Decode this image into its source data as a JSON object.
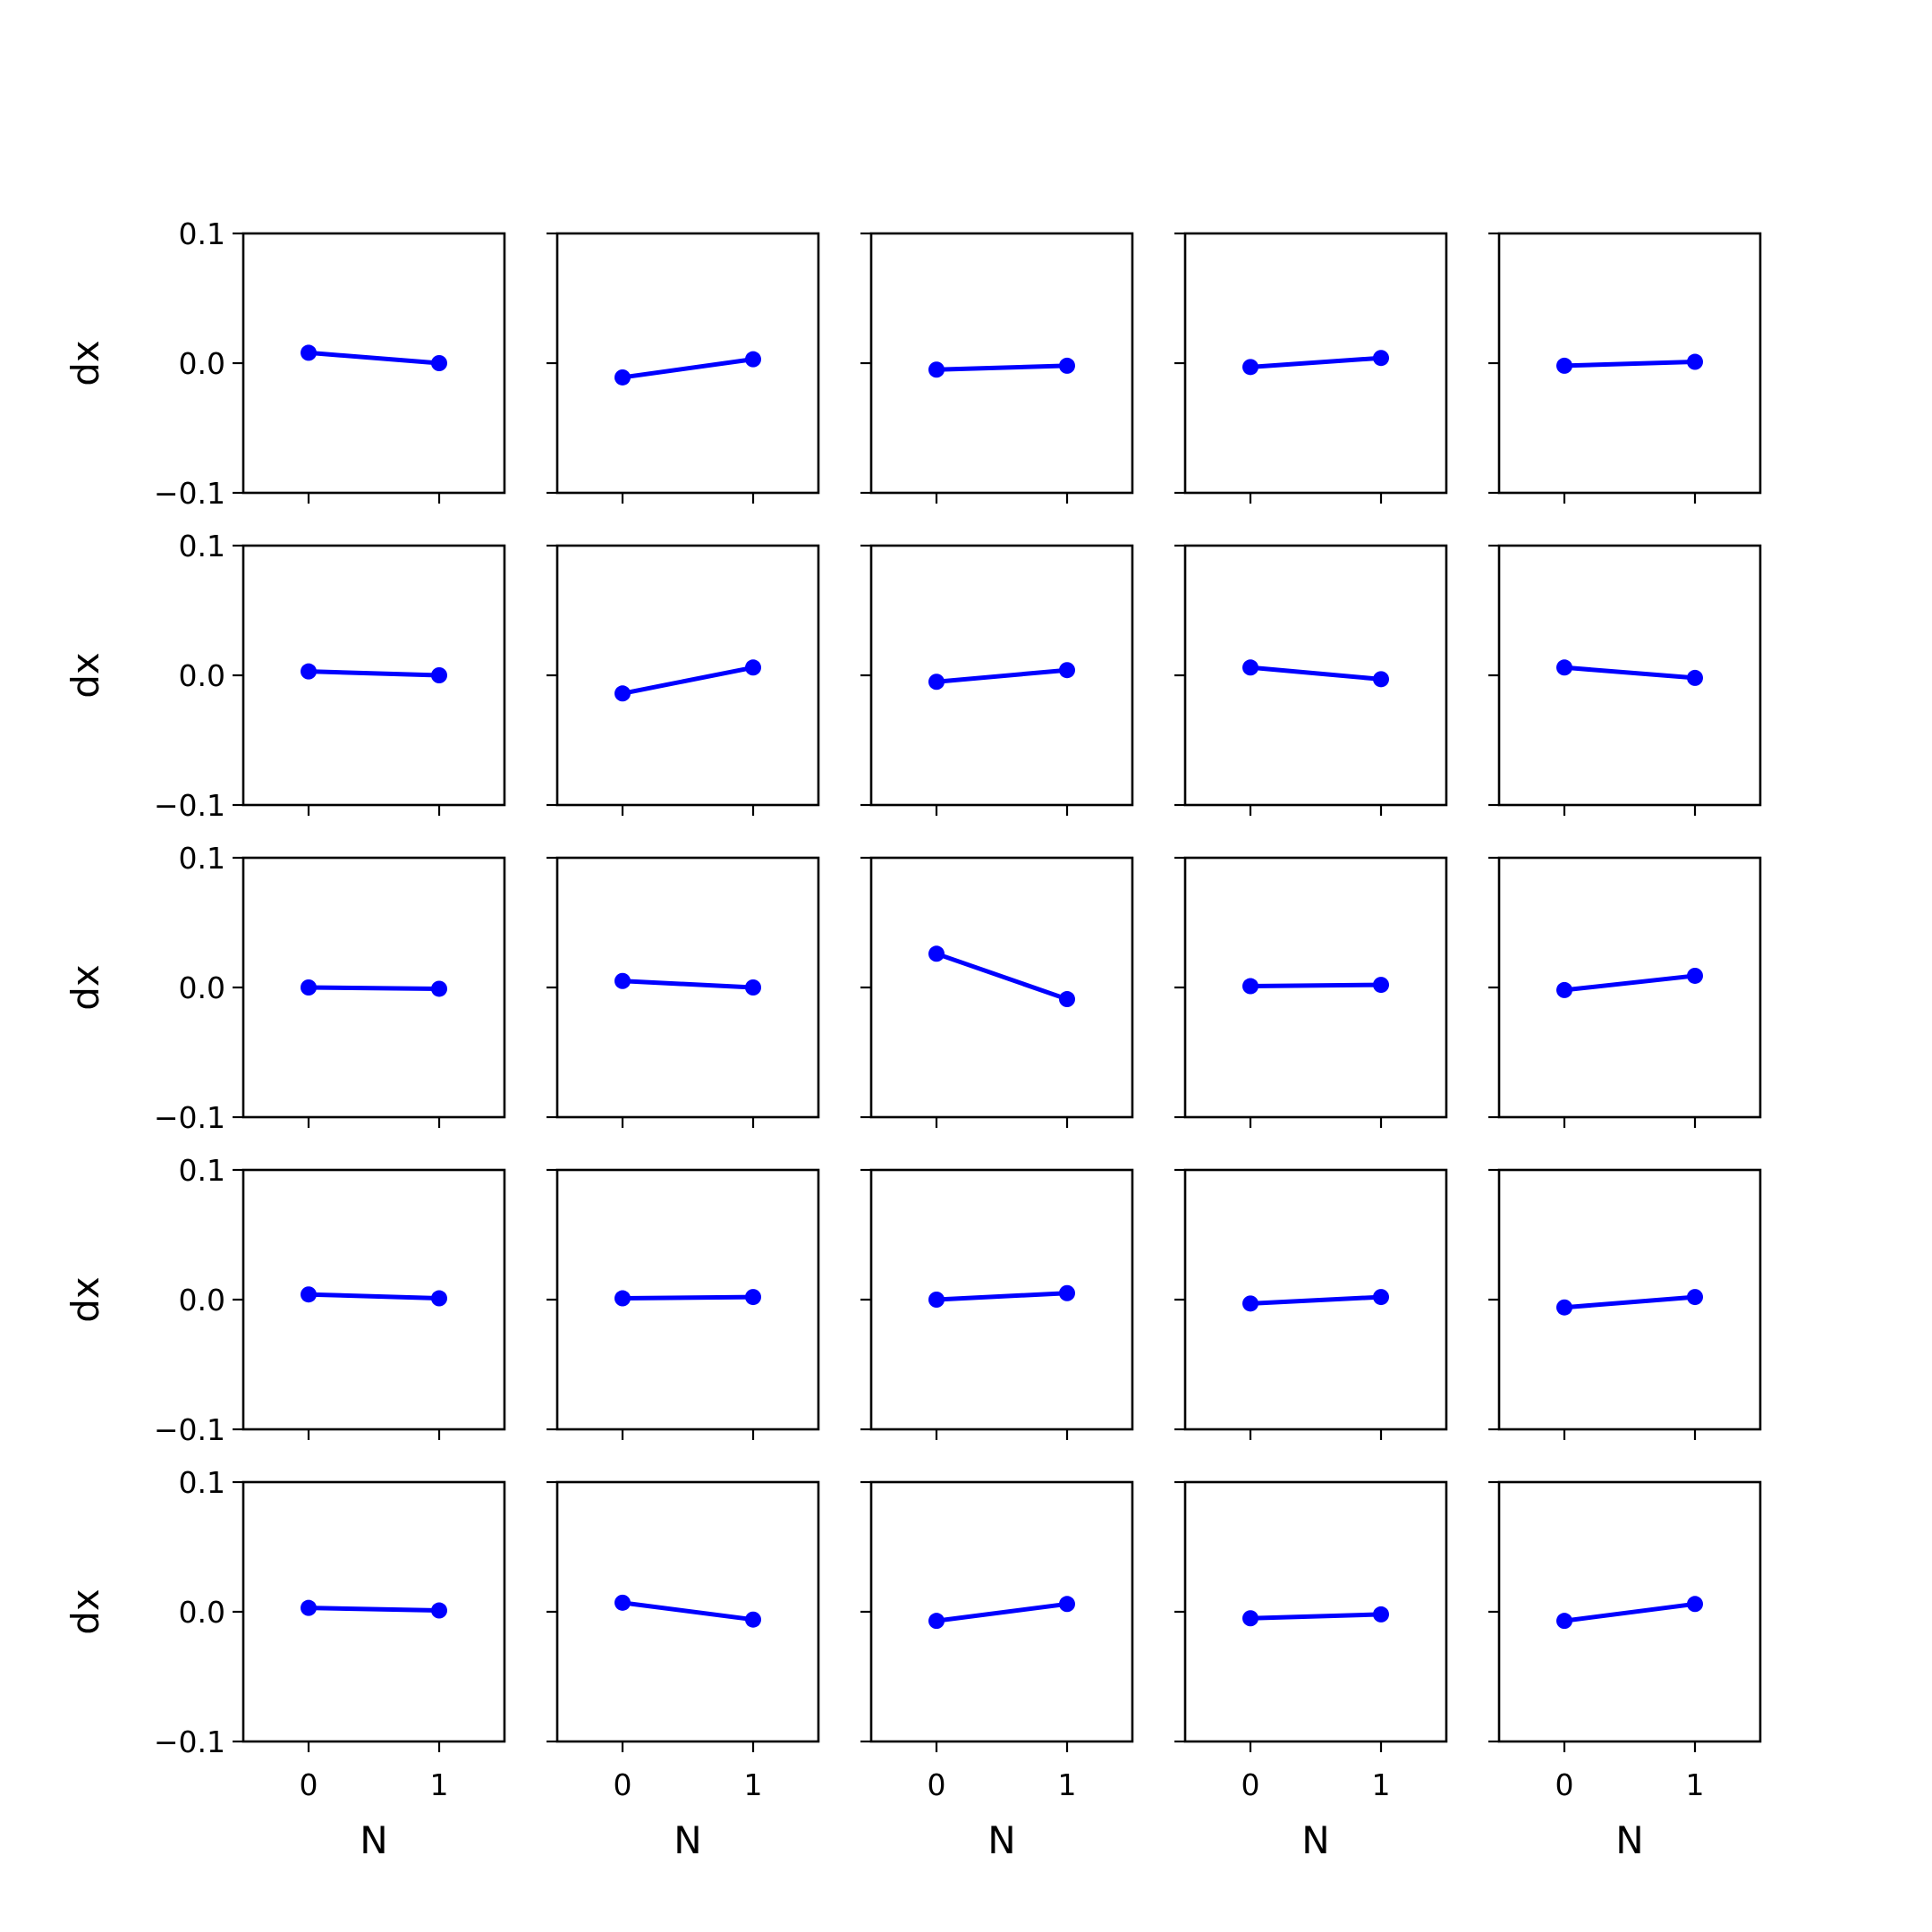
{
  "chart_data": {
    "type": "line",
    "layout": "5x5 grid of subplots",
    "xlabel": "N",
    "ylabel": "dx",
    "x": [
      0,
      1
    ],
    "xticks": [
      "0",
      "1"
    ],
    "yticks": [
      "0.1",
      "0.0",
      "−0.1"
    ],
    "ytick_values": [
      0.1,
      0.0,
      -0.1
    ],
    "xlim": [
      -0.5,
      1.5
    ],
    "ylim": [
      -0.1,
      0.1
    ],
    "color": "#0000ff",
    "grid": false,
    "subplots": [
      {
        "row": 0,
        "col": 0,
        "y": [
          0.008,
          0.0
        ]
      },
      {
        "row": 0,
        "col": 1,
        "y": [
          -0.011,
          0.003
        ]
      },
      {
        "row": 0,
        "col": 2,
        "y": [
          -0.005,
          -0.002
        ]
      },
      {
        "row": 0,
        "col": 3,
        "y": [
          -0.003,
          0.004
        ]
      },
      {
        "row": 0,
        "col": 4,
        "y": [
          -0.002,
          0.001
        ]
      },
      {
        "row": 1,
        "col": 0,
        "y": [
          0.003,
          0.0
        ]
      },
      {
        "row": 1,
        "col": 1,
        "y": [
          -0.014,
          0.006
        ]
      },
      {
        "row": 1,
        "col": 2,
        "y": [
          -0.005,
          0.004
        ]
      },
      {
        "row": 1,
        "col": 3,
        "y": [
          0.006,
          -0.003
        ]
      },
      {
        "row": 1,
        "col": 4,
        "y": [
          0.006,
          -0.002
        ]
      },
      {
        "row": 2,
        "col": 0,
        "y": [
          0.0,
          -0.001
        ]
      },
      {
        "row": 2,
        "col": 1,
        "y": [
          0.005,
          0.0
        ]
      },
      {
        "row": 2,
        "col": 2,
        "y": [
          0.026,
          -0.009
        ]
      },
      {
        "row": 2,
        "col": 3,
        "y": [
          0.001,
          0.002
        ]
      },
      {
        "row": 2,
        "col": 4,
        "y": [
          -0.002,
          0.009
        ]
      },
      {
        "row": 3,
        "col": 0,
        "y": [
          0.004,
          0.001
        ]
      },
      {
        "row": 3,
        "col": 1,
        "y": [
          0.001,
          0.002
        ]
      },
      {
        "row": 3,
        "col": 2,
        "y": [
          0.0,
          0.005
        ]
      },
      {
        "row": 3,
        "col": 3,
        "y": [
          -0.003,
          0.002
        ]
      },
      {
        "row": 3,
        "col": 4,
        "y": [
          -0.006,
          0.002
        ]
      },
      {
        "row": 4,
        "col": 0,
        "y": [
          0.003,
          0.001
        ]
      },
      {
        "row": 4,
        "col": 1,
        "y": [
          0.007,
          -0.006
        ]
      },
      {
        "row": 4,
        "col": 2,
        "y": [
          -0.007,
          0.006
        ]
      },
      {
        "row": 4,
        "col": 3,
        "y": [
          -0.005,
          -0.002
        ]
      },
      {
        "row": 4,
        "col": 4,
        "y": [
          -0.007,
          0.006
        ]
      }
    ]
  }
}
